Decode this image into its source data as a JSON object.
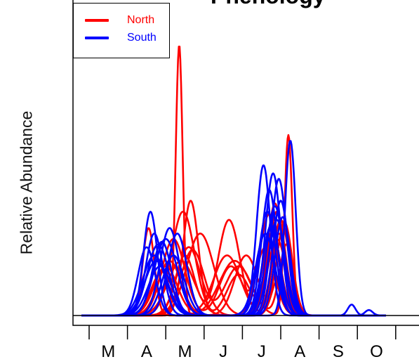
{
  "title": "Phenology",
  "ylabel": "Relative Abundance",
  "legend": [
    {
      "name": "North",
      "color": "#ff0000"
    },
    {
      "name": "South",
      "color": "#0000ff"
    }
  ],
  "chart_data": {
    "type": "line",
    "title": "Phenology",
    "xlabel": "",
    "ylabel": "Relative Abundance",
    "x_unit": "month",
    "xlim": [
      2.75,
      11.0
    ],
    "ylim": [
      0.0,
      1.0
    ],
    "x_ticks": [
      3,
      4,
      5,
      6,
      7,
      8,
      9,
      10,
      11
    ],
    "month_labels": [
      "M",
      "A",
      "M",
      "J",
      "J",
      "A",
      "S",
      "O"
    ],
    "legend_position": "top-left",
    "grid": false,
    "series": [
      {
        "name": "North",
        "color": "#ff0000",
        "curves": [
          {
            "peaks": [
              [
                5.35,
                0.99,
                0.09
              ],
              [
                7.95,
                0.14,
                0.18
              ]
            ]
          },
          {
            "peaks": [
              [
                8.2,
                0.66,
                0.1
              ],
              [
                5.6,
                0.25,
                0.3
              ],
              [
                6.9,
                0.18,
                0.35
              ]
            ]
          },
          {
            "peaks": [
              [
                5.65,
                0.42,
                0.2
              ],
              [
                7.9,
                0.38,
                0.22
              ],
              [
                6.9,
                0.15,
                0.3
              ]
            ]
          },
          {
            "peaks": [
              [
                5.45,
                0.38,
                0.3
              ],
              [
                7.85,
                0.41,
                0.2
              ]
            ]
          },
          {
            "peaks": [
              [
                6.65,
                0.35,
                0.28
              ],
              [
                7.8,
                0.3,
                0.2
              ],
              [
                5.5,
                0.22,
                0.25
              ]
            ]
          },
          {
            "peaks": [
              [
                5.9,
                0.3,
                0.35
              ],
              [
                8.0,
                0.35,
                0.22
              ]
            ]
          },
          {
            "peaks": [
              [
                5.2,
                0.28,
                0.3
              ],
              [
                7.7,
                0.37,
                0.25
              ],
              [
                6.7,
                0.18,
                0.3
              ]
            ]
          },
          {
            "peaks": [
              [
                4.55,
                0.32,
                0.15
              ],
              [
                7.75,
                0.3,
                0.22
              ]
            ]
          },
          {
            "peaks": [
              [
                5.1,
                0.2,
                0.3
              ],
              [
                7.1,
                0.22,
                0.3
              ],
              [
                8.1,
                0.34,
                0.2
              ]
            ]
          },
          {
            "peaks": [
              [
                5.7,
                0.24,
                0.3
              ],
              [
                7.9,
                0.28,
                0.24
              ]
            ]
          },
          {
            "peaks": [
              [
                5.0,
                0.18,
                0.3
              ],
              [
                6.6,
                0.22,
                0.35
              ],
              [
                7.95,
                0.3,
                0.18
              ]
            ]
          },
          {
            "peaks": [
              [
                5.4,
                0.2,
                0.35
              ],
              [
                7.6,
                0.25,
                0.25
              ]
            ]
          },
          {
            "peaks": [
              [
                4.9,
                0.16,
                0.28
              ],
              [
                6.8,
                0.2,
                0.4
              ],
              [
                8.15,
                0.26,
                0.18
              ]
            ]
          }
        ]
      },
      {
        "name": "South",
        "color": "#0000ff",
        "curves": [
          {
            "peaks": [
              [
                8.25,
                0.64,
                0.14
              ],
              [
                4.7,
                0.22,
                0.3
              ]
            ]
          },
          {
            "peaks": [
              [
                7.55,
                0.55,
                0.18
              ],
              [
                4.7,
                0.3,
                0.22
              ]
            ]
          },
          {
            "peaks": [
              [
                7.8,
                0.52,
                0.2
              ],
              [
                4.9,
                0.27,
                0.25
              ]
            ]
          },
          {
            "peaks": [
              [
                7.95,
                0.5,
                0.2
              ],
              [
                4.6,
                0.38,
                0.18
              ]
            ]
          },
          {
            "peaks": [
              [
                7.7,
                0.46,
                0.2
              ],
              [
                5.1,
                0.32,
                0.25
              ]
            ]
          },
          {
            "peaks": [
              [
                8.0,
                0.42,
                0.2
              ],
              [
                4.8,
                0.26,
                0.28
              ],
              [
                9.85,
                0.04,
                0.1
              ]
            ]
          },
          {
            "peaks": [
              [
                7.85,
                0.4,
                0.22
              ],
              [
                5.3,
                0.3,
                0.25
              ]
            ]
          },
          {
            "peaks": [
              [
                7.65,
                0.38,
                0.22
              ],
              [
                4.5,
                0.25,
                0.22
              ],
              [
                10.3,
                0.02,
                0.1
              ]
            ]
          },
          {
            "peaks": [
              [
                7.9,
                0.35,
                0.22
              ],
              [
                5.0,
                0.28,
                0.3
              ]
            ]
          },
          {
            "peaks": [
              [
                7.75,
                0.33,
                0.22
              ],
              [
                4.75,
                0.2,
                0.3
              ]
            ]
          },
          {
            "peaks": [
              [
                8.05,
                0.36,
                0.2
              ],
              [
                5.2,
                0.22,
                0.28
              ]
            ]
          },
          {
            "peaks": [
              [
                7.6,
                0.3,
                0.25
              ],
              [
                4.85,
                0.18,
                0.3
              ]
            ]
          }
        ]
      }
    ]
  }
}
